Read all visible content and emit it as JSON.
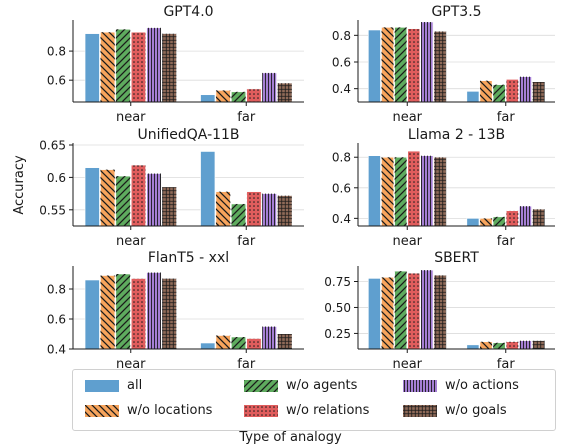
{
  "ylabel": "Accuracy",
  "xlabel": "Type of analogy",
  "legend": {
    "position": "bottom",
    "entries": [
      {
        "key": "all",
        "label": "all",
        "color": "#5f9fcf",
        "pattern": "none"
      },
      {
        "key": "locations",
        "label": "w/o locations",
        "color": "#f7a45c",
        "pattern": "backslash"
      },
      {
        "key": "agents",
        "label": "w/o agents",
        "color": "#5eab5e",
        "pattern": "slash"
      },
      {
        "key": "relations",
        "label": "w/o relations",
        "color": "#e05d5d",
        "pattern": "dots"
      },
      {
        "key": "actions",
        "label": "w/o actions",
        "color": "#a57fd4",
        "pattern": "vlines"
      },
      {
        "key": "goals",
        "label": "w/o goals",
        "color": "#8f6a58",
        "pattern": "grid"
      }
    ]
  },
  "chart_data": [
    {
      "type": "bar",
      "title": "GPT4.0",
      "categories": [
        "near",
        "far"
      ],
      "ylim": [
        0.45,
        1.0
      ],
      "yticks": [
        0.6,
        0.8
      ],
      "ytick_labels": [
        "0.6",
        "0.8"
      ],
      "grid": "y",
      "series": [
        {
          "name": "all",
          "values": [
            0.92,
            0.5
          ]
        },
        {
          "name": "w/o locations",
          "values": [
            0.93,
            0.53
          ]
        },
        {
          "name": "w/o agents",
          "values": [
            0.95,
            0.52
          ]
        },
        {
          "name": "w/o relations",
          "values": [
            0.93,
            0.54
          ]
        },
        {
          "name": "w/o actions",
          "values": [
            0.96,
            0.65
          ]
        },
        {
          "name": "w/o goals",
          "values": [
            0.92,
            0.58
          ]
        }
      ]
    },
    {
      "type": "bar",
      "title": "GPT3.5",
      "categories": [
        "near",
        "far"
      ],
      "ylim": [
        0.3,
        0.9
      ],
      "yticks": [
        0.4,
        0.6,
        0.8
      ],
      "ytick_labels": [
        "0.4",
        "0.6",
        "0.8"
      ],
      "grid": "y",
      "series": [
        {
          "name": "all",
          "values": [
            0.84,
            0.38
          ]
        },
        {
          "name": "w/o locations",
          "values": [
            0.86,
            0.46
          ]
        },
        {
          "name": "w/o agents",
          "values": [
            0.86,
            0.43
          ]
        },
        {
          "name": "w/o relations",
          "values": [
            0.85,
            0.47
          ]
        },
        {
          "name": "w/o actions",
          "values": [
            0.9,
            0.49
          ]
        },
        {
          "name": "w/o goals",
          "values": [
            0.83,
            0.45
          ]
        }
      ]
    },
    {
      "type": "bar",
      "title": "UnifiedQA-11B",
      "categories": [
        "near",
        "far"
      ],
      "ylim": [
        0.525,
        0.65
      ],
      "yticks": [
        0.55,
        0.6,
        0.65
      ],
      "ytick_labels": [
        "0.55",
        "0.6",
        "0.65"
      ],
      "grid": "y",
      "series": [
        {
          "name": "all",
          "values": [
            0.615,
            0.64
          ]
        },
        {
          "name": "w/o locations",
          "values": [
            0.612,
            0.578
          ]
        },
        {
          "name": "w/o agents",
          "values": [
            0.602,
            0.559
          ]
        },
        {
          "name": "w/o relations",
          "values": [
            0.619,
            0.578
          ]
        },
        {
          "name": "w/o actions",
          "values": [
            0.606,
            0.575
          ]
        },
        {
          "name": "w/o goals",
          "values": [
            0.585,
            0.572
          ]
        }
      ]
    },
    {
      "type": "bar",
      "title": "Llama 2 - 13B",
      "categories": [
        "near",
        "far"
      ],
      "ylim": [
        0.35,
        0.88
      ],
      "yticks": [
        0.4,
        0.6,
        0.8
      ],
      "ytick_labels": [
        "0.4",
        "0.6",
        "0.8"
      ],
      "grid": "y",
      "series": [
        {
          "name": "all",
          "values": [
            0.81,
            0.4
          ]
        },
        {
          "name": "w/o locations",
          "values": [
            0.8,
            0.4
          ]
        },
        {
          "name": "w/o agents",
          "values": [
            0.8,
            0.41
          ]
        },
        {
          "name": "w/o relations",
          "values": [
            0.84,
            0.45
          ]
        },
        {
          "name": "w/o actions",
          "values": [
            0.81,
            0.48
          ]
        },
        {
          "name": "w/o goals",
          "values": [
            0.8,
            0.46
          ]
        }
      ]
    },
    {
      "type": "bar",
      "title": "FlanT5 - xxl",
      "categories": [
        "near",
        "far"
      ],
      "ylim": [
        0.4,
        0.94
      ],
      "yticks": [
        0.4,
        0.6,
        0.8
      ],
      "ytick_labels": [
        "0.4",
        "0.6",
        "0.8"
      ],
      "grid": "y",
      "series": [
        {
          "name": "all",
          "values": [
            0.86,
            0.44
          ]
        },
        {
          "name": "w/o locations",
          "values": [
            0.89,
            0.49
          ]
        },
        {
          "name": "w/o agents",
          "values": [
            0.9,
            0.48
          ]
        },
        {
          "name": "w/o relations",
          "values": [
            0.87,
            0.47
          ]
        },
        {
          "name": "w/o actions",
          "values": [
            0.91,
            0.55
          ]
        },
        {
          "name": "w/o goals",
          "values": [
            0.87,
            0.5
          ]
        }
      ]
    },
    {
      "type": "bar",
      "title": "SBERT",
      "categories": [
        "near",
        "far"
      ],
      "ylim": [
        0.1,
        0.88
      ],
      "yticks": [
        0.25,
        0.5,
        0.75
      ],
      "ytick_labels": [
        "0.25",
        "0.50",
        "0.75"
      ],
      "grid": "y",
      "series": [
        {
          "name": "all",
          "values": [
            0.78,
            0.14
          ]
        },
        {
          "name": "w/o locations",
          "values": [
            0.79,
            0.17
          ]
        },
        {
          "name": "w/o agents",
          "values": [
            0.85,
            0.16
          ]
        },
        {
          "name": "w/o relations",
          "values": [
            0.83,
            0.17
          ]
        },
        {
          "name": "w/o actions",
          "values": [
            0.86,
            0.18
          ]
        },
        {
          "name": "w/o goals",
          "values": [
            0.81,
            0.18
          ]
        }
      ]
    }
  ]
}
